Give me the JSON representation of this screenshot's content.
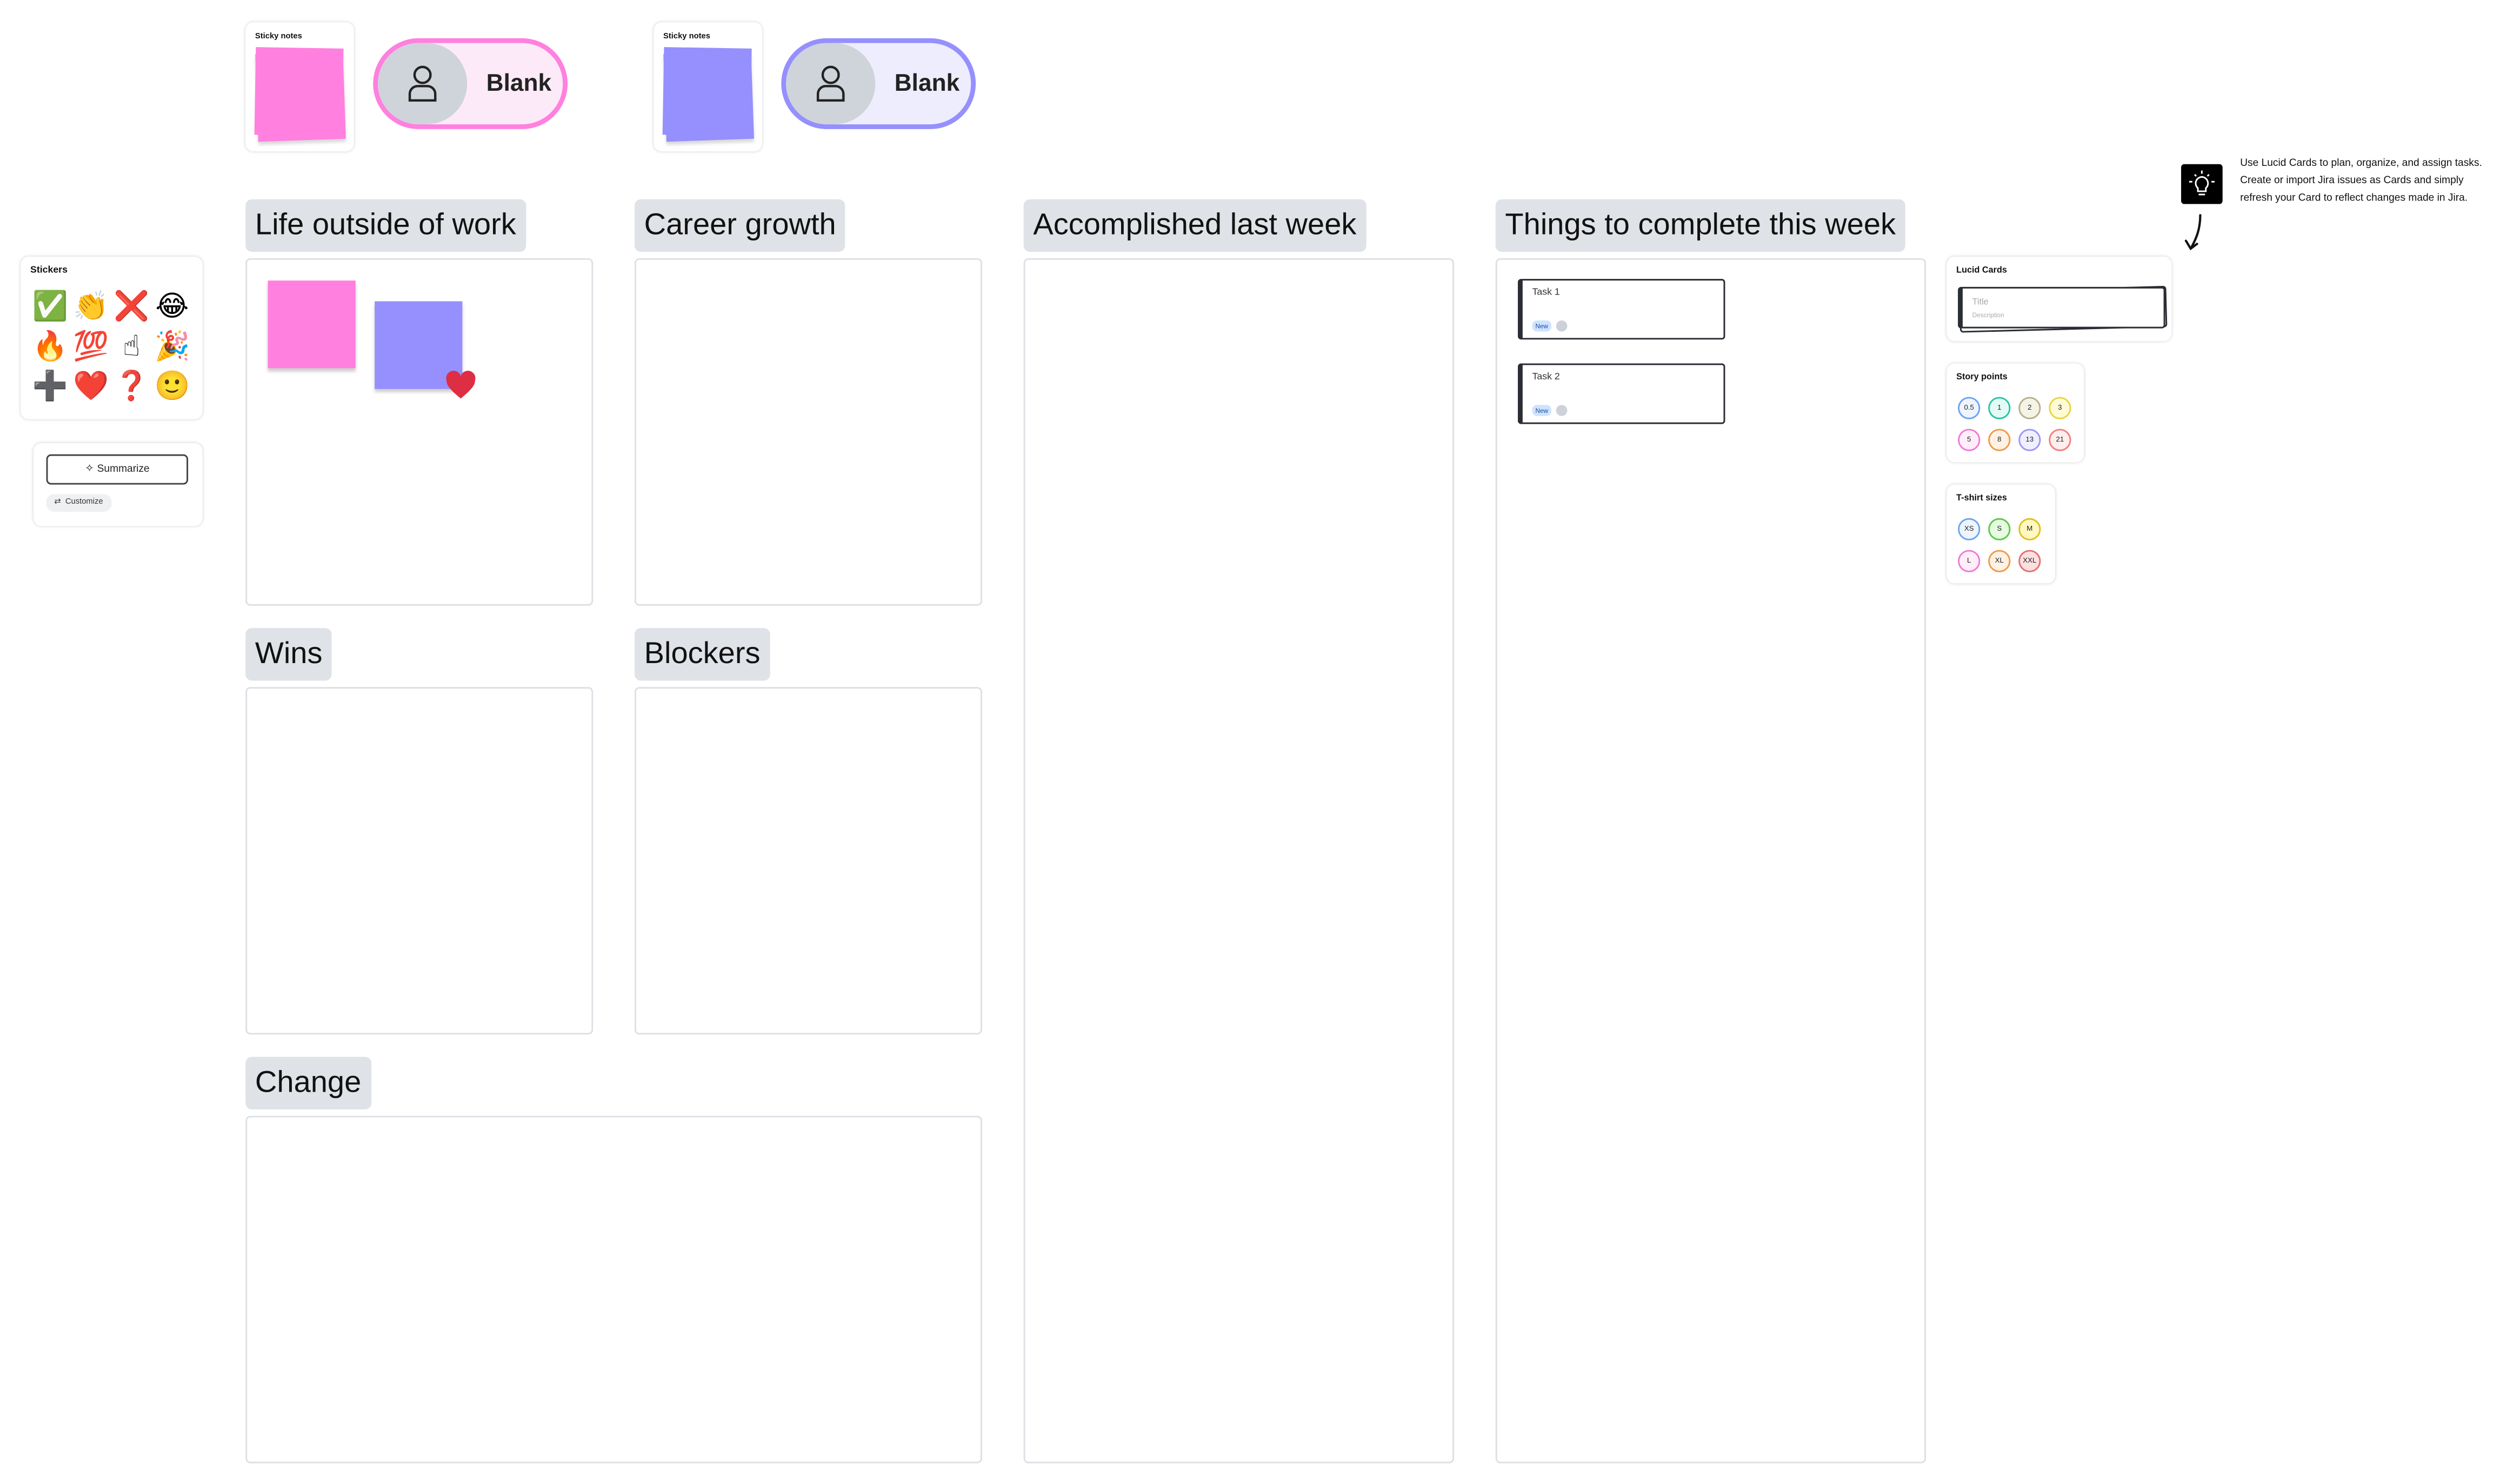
{
  "sticky_groups": [
    {
      "title": "Sticky notes",
      "pill_label": "Blank",
      "color": "#ff80df",
      "pill_bg": "#fdeaf8"
    },
    {
      "title": "Sticky notes",
      "pill_label": "Blank",
      "color": "#9590fd",
      "pill_bg": "#eeedfe"
    }
  ],
  "sections": {
    "life": "Life outside of work",
    "career": "Career growth",
    "wins": "Wins",
    "blockers": "Blockers",
    "change": "Change",
    "accomplished": "Accomplished last week",
    "things": "Things to complete this week"
  },
  "stickers": {
    "title": "Stickers",
    "items": [
      "✅",
      "👏",
      "❌",
      "😂",
      "🔥",
      "💯",
      "☝",
      "🎉",
      "➕",
      "❤️",
      "❓",
      "🙂"
    ]
  },
  "ai_panel": {
    "summarize": "Summarize",
    "customize": "Customize"
  },
  "tasks": [
    {
      "title": "Task 1",
      "status": "New"
    },
    {
      "title": "Task 2",
      "status": "New"
    }
  ],
  "lucid_cards": {
    "title": "Lucid Cards",
    "card_title": "Title",
    "card_description": "Description"
  },
  "story_points": {
    "title": "Story points",
    "values": [
      "0.5",
      "1",
      "2",
      "3",
      "5",
      "8",
      "13",
      "21"
    ]
  },
  "tshirt_sizes": {
    "title": "T-shirt sizes",
    "values": [
      "XS",
      "S",
      "M",
      "L",
      "XL",
      "XXL"
    ]
  },
  "tip": {
    "icon": "lightbulb-icon",
    "text": "Use Lucid Cards to plan, organize, and assign tasks. Create or import Jira issues as Cards and simply refresh your Card to reflect changes made in Jira."
  },
  "colors": {
    "header_bg": "#dfe2e6",
    "pink_note": "#ff80df",
    "purple_note": "#9590fd",
    "heart": "#dd2e44"
  }
}
